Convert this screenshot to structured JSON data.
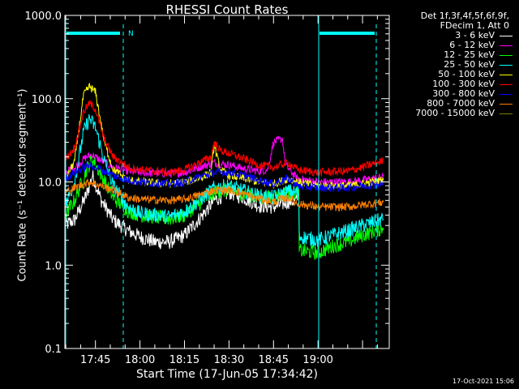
{
  "window": {
    "background": "#000000"
  },
  "chart_data": {
    "type": "line",
    "title": "RHESSI Count Rates",
    "xlabel": "Start Time (17-Jun-05 17:34:42)",
    "ylabel": "Count Rate (s⁻¹ detector segment⁻¹)",
    "yscale": "log",
    "ylim": [
      0.1,
      1000
    ],
    "xlim": [
      "17:34:42",
      "19:24:00"
    ],
    "x_ticks": [
      "17:45",
      "18:00",
      "18:15",
      "18:30",
      "18:45",
      "19:00"
    ],
    "y_ticks": [
      "0.1",
      "1.0",
      "10.0",
      "100.0",
      "1000.0"
    ],
    "legend_placement": "outside-right-top",
    "legend_header": [
      "Det 1f,3f,4f,5f,6f,9f,",
      "FDecim 1, Att 0"
    ],
    "annotation": "N",
    "footer": "17-Oct-2021 15:06",
    "grid": false,
    "series": [
      {
        "name": "3 - 6 keV",
        "color": "#ffffff",
        "points": [
          [
            "17:34:42",
            3.0
          ],
          [
            "17:38",
            3.5
          ],
          [
            "17:42",
            7
          ],
          [
            "17:44",
            12
          ],
          [
            "17:47",
            6
          ],
          [
            "17:51",
            3.5
          ],
          [
            "17:56",
            2.6
          ],
          [
            "18:00",
            2.2
          ],
          [
            "18:05",
            1.9
          ],
          [
            "18:10",
            1.9
          ],
          [
            "18:15",
            2.3
          ],
          [
            "18:20",
            3.6
          ],
          [
            "18:25",
            6.0
          ],
          [
            "18:30",
            7.5
          ],
          [
            "18:35",
            6.5
          ],
          [
            "18:40",
            5.2
          ],
          [
            "18:45",
            5.0
          ],
          [
            "18:50",
            5.8
          ],
          [
            "18:53",
            6.0
          ]
        ]
      },
      {
        "name": "6 - 12 keV",
        "color": "#ff00ff",
        "points": [
          [
            "17:34:42",
            13
          ],
          [
            "17:38",
            15
          ],
          [
            "17:42",
            20
          ],
          [
            "17:44",
            21
          ],
          [
            "17:47",
            18
          ],
          [
            "17:51",
            15
          ],
          [
            "17:56",
            13.5
          ],
          [
            "18:00",
            13
          ],
          [
            "18:10",
            12.5
          ],
          [
            "18:15",
            13
          ],
          [
            "18:20",
            15
          ],
          [
            "18:25",
            17
          ],
          [
            "18:30",
            16
          ],
          [
            "18:35",
            14.5
          ],
          [
            "18:40",
            13.5
          ],
          [
            "18:43",
            14
          ],
          [
            "18:45",
            30
          ],
          [
            "18:48",
            33
          ],
          [
            "18:49",
            16
          ],
          [
            "18:53",
            11
          ],
          [
            "19:00",
            10
          ],
          [
            "19:10",
            10
          ],
          [
            "19:15",
            10.5
          ],
          [
            "19:22",
            11.5
          ]
        ]
      },
      {
        "name": "12 - 25 keV",
        "color": "#00ff00",
        "points": [
          [
            "17:34:42",
            4
          ],
          [
            "17:38",
            6
          ],
          [
            "17:42",
            14
          ],
          [
            "17:44",
            19
          ],
          [
            "17:47",
            12
          ],
          [
            "17:51",
            6.5
          ],
          [
            "17:56",
            4.5
          ],
          [
            "18:00",
            4.0
          ],
          [
            "18:10",
            3.6
          ],
          [
            "18:15",
            4.0
          ],
          [
            "18:20",
            5.5
          ],
          [
            "18:25",
            7.5
          ],
          [
            "18:30",
            8.0
          ],
          [
            "18:35",
            7.2
          ],
          [
            "18:40",
            6.5
          ],
          [
            "18:45",
            6.5
          ],
          [
            "18:50",
            7.5
          ],
          [
            "18:53",
            7.5
          ],
          [
            "18:54",
            1.5
          ],
          [
            "19:00",
            1.4
          ],
          [
            "19:05",
            1.7
          ],
          [
            "19:10",
            1.9
          ],
          [
            "19:15",
            2.3
          ],
          [
            "19:22",
            2.8
          ]
        ]
      },
      {
        "name": "25 - 50 keV",
        "color": "#00ffff",
        "points": [
          [
            "17:34:42",
            5
          ],
          [
            "17:38",
            10
          ],
          [
            "17:41",
            40
          ],
          [
            "17:43",
            58
          ],
          [
            "17:45",
            45
          ],
          [
            "17:48",
            18
          ],
          [
            "17:51",
            9
          ],
          [
            "17:56",
            5.0
          ],
          [
            "18:00",
            4.2
          ],
          [
            "18:10",
            3.8
          ],
          [
            "18:15",
            4.4
          ],
          [
            "18:20",
            6.0
          ],
          [
            "18:25",
            8.5
          ],
          [
            "18:30",
            9.0
          ],
          [
            "18:35",
            7.8
          ],
          [
            "18:40",
            6.8
          ],
          [
            "18:45",
            6.5
          ],
          [
            "18:50",
            7.8
          ],
          [
            "18:53",
            7.5
          ],
          [
            "18:54",
            2.2
          ],
          [
            "19:00",
            2.0
          ],
          [
            "19:05",
            2.3
          ],
          [
            "19:10",
            2.6
          ],
          [
            "19:15",
            3.0
          ],
          [
            "19:22",
            3.6
          ]
        ]
      },
      {
        "name": "50 - 100 keV",
        "color": "#ffff00",
        "points": [
          [
            "17:34:42",
            10
          ],
          [
            "17:38",
            18
          ],
          [
            "17:41",
            110
          ],
          [
            "17:43",
            140
          ],
          [
            "17:45",
            120
          ],
          [
            "17:48",
            30
          ],
          [
            "17:51",
            14
          ],
          [
            "17:56",
            10.5
          ],
          [
            "18:00",
            10
          ],
          [
            "18:10",
            9.5
          ],
          [
            "18:15",
            10
          ],
          [
            "18:20",
            11
          ],
          [
            "18:24",
            13
          ],
          [
            "18:25",
            28
          ],
          [
            "18:27",
            14
          ],
          [
            "18:30",
            12
          ],
          [
            "18:35",
            11
          ],
          [
            "18:40",
            10
          ],
          [
            "18:45",
            9.5
          ],
          [
            "18:50",
            11
          ],
          [
            "18:53",
            10
          ],
          [
            "19:00",
            9
          ],
          [
            "19:10",
            9
          ],
          [
            "19:15",
            9.5
          ],
          [
            "19:22",
            10.5
          ]
        ]
      },
      {
        "name": "100 - 300 keV",
        "color": "#ff0000",
        "points": [
          [
            "17:34:42",
            18
          ],
          [
            "17:38",
            26
          ],
          [
            "17:41",
            70
          ],
          [
            "17:43",
            88
          ],
          [
            "17:45",
            75
          ],
          [
            "17:48",
            32
          ],
          [
            "17:51",
            20
          ],
          [
            "17:56",
            15
          ],
          [
            "18:00",
            14
          ],
          [
            "18:10",
            13
          ],
          [
            "18:15",
            14
          ],
          [
            "18:20",
            17
          ],
          [
            "18:24",
            20
          ],
          [
            "18:25",
            30
          ],
          [
            "18:27",
            24
          ],
          [
            "18:30",
            22
          ],
          [
            "18:35",
            19
          ],
          [
            "18:40",
            16
          ],
          [
            "18:45",
            15
          ],
          [
            "18:50",
            17
          ],
          [
            "18:53",
            14
          ],
          [
            "19:00",
            13
          ],
          [
            "19:10",
            13.5
          ],
          [
            "19:15",
            15
          ],
          [
            "19:22",
            18
          ]
        ]
      },
      {
        "name": "300 - 800 keV",
        "color": "#0000ff",
        "points": [
          [
            "17:34:42",
            11
          ],
          [
            "17:38",
            13
          ],
          [
            "17:43",
            16
          ],
          [
            "17:47",
            14
          ],
          [
            "17:51",
            12
          ],
          [
            "17:56",
            10.5
          ],
          [
            "18:00",
            10
          ],
          [
            "18:10",
            9.5
          ],
          [
            "18:15",
            10
          ],
          [
            "18:20",
            11.5
          ],
          [
            "18:25",
            13
          ],
          [
            "18:30",
            13
          ],
          [
            "18:35",
            12
          ],
          [
            "18:40",
            10.5
          ],
          [
            "18:45",
            9.5
          ],
          [
            "18:50",
            11
          ],
          [
            "18:53",
            9
          ],
          [
            "19:00",
            8.5
          ],
          [
            "19:10",
            8.5
          ],
          [
            "19:15",
            9
          ],
          [
            "19:22",
            9.5
          ]
        ]
      },
      {
        "name": "800 - 7000 keV",
        "color": "#ff8000",
        "points": [
          [
            "17:34:42",
            7.5
          ],
          [
            "17:38",
            8.5
          ],
          [
            "17:43",
            10
          ],
          [
            "17:47",
            9
          ],
          [
            "17:51",
            8
          ],
          [
            "17:56",
            6.5
          ],
          [
            "18:00",
            6.2
          ],
          [
            "18:10",
            6
          ],
          [
            "18:15",
            6.2
          ],
          [
            "18:20",
            7
          ],
          [
            "18:25",
            8
          ],
          [
            "18:30",
            8
          ],
          [
            "18:35",
            7.2
          ],
          [
            "18:40",
            6.3
          ],
          [
            "18:45",
            5.8
          ],
          [
            "18:50",
            6.5
          ],
          [
            "18:53",
            5.5
          ],
          [
            "19:00",
            5.0
          ],
          [
            "19:10",
            5.0
          ],
          [
            "19:15",
            5.3
          ],
          [
            "19:22",
            5.7
          ]
        ]
      },
      {
        "name": "7000 - 15000 keV",
        "color": "#808000",
        "points": []
      }
    ]
  }
}
